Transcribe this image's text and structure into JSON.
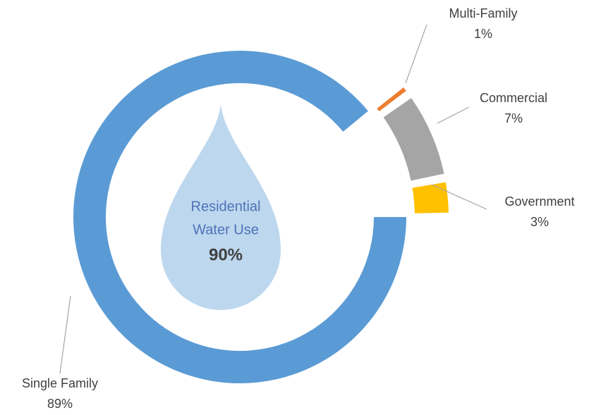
{
  "chart_data": {
    "type": "donut",
    "categories": [
      "Single Family",
      "Multi-Family",
      "Commercial",
      "Government"
    ],
    "values": [
      89,
      1,
      7,
      3
    ],
    "value_labels": [
      "89%",
      "1%",
      "7%",
      "3%"
    ],
    "colors": [
      "#5b9bd5",
      "#ed7d31",
      "#a5a5a5",
      "#ffc000"
    ],
    "center_lines": [
      "Residential",
      "Water Use"
    ],
    "center_value": "90%"
  }
}
